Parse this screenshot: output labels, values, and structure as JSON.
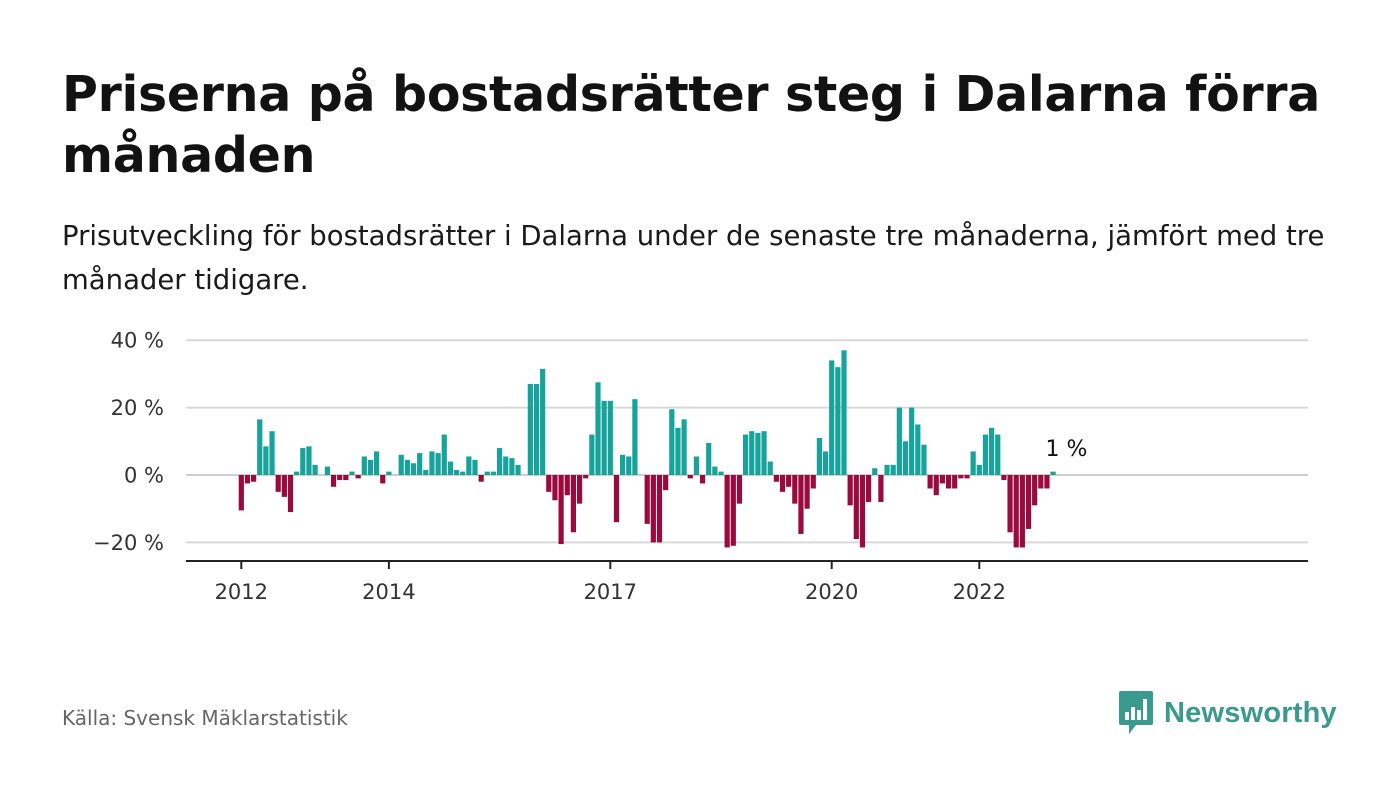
{
  "title": "Priserna på bostadsrätter steg i Dalarna förra månaden",
  "subtitle": "Prisutveckling för bostadsrätter i Dalarna under de senaste tre månaderna, jämfört med tre månader tidigare.",
  "source": "Källa: Svensk Mäklarstatistik",
  "brand": "Newsworthy",
  "colors": {
    "positive": "#16a39c",
    "negative": "#9b0a3c",
    "grid": "#d9d9d9",
    "axis": "#222222",
    "brand": "#3a9a8e"
  },
  "chart_data": {
    "type": "bar",
    "title": "Priserna på bostadsrätter steg i Dalarna förra månaden",
    "subtitle": "Prisutveckling för bostadsrätter i Dalarna under de senaste tre månaderna, jämfört med tre månader tidigare.",
    "xlabel": "",
    "ylabel": "",
    "x_start": "2012-01",
    "x_end": "2023-03",
    "x_unit": "month",
    "ylim": [
      -25,
      40
    ],
    "yticks": [
      40,
      20,
      0,
      -20
    ],
    "ytick_labels": [
      "40 %",
      "20 %",
      "0 %",
      "−20 %"
    ],
    "xticks": [
      "2012-01",
      "2014-01",
      "2017-01",
      "2020-01",
      "2022-01"
    ],
    "xtick_labels": [
      "2012",
      "2014",
      "2017",
      "2020",
      "2022"
    ],
    "grid": true,
    "annotation": {
      "x": "2023-03",
      "label": "1 %"
    },
    "values": [
      -10.5,
      -2.5,
      -2,
      16.5,
      8.5,
      13,
      -5,
      -6.5,
      -11,
      1,
      8,
      8.5,
      3,
      0,
      2.5,
      -3.5,
      -1.5,
      -1.5,
      1,
      -1,
      5.5,
      4.5,
      7,
      -2.5,
      1,
      0,
      6,
      4.5,
      3.5,
      6.5,
      1.5,
      7,
      6.5,
      12,
      4,
      1.5,
      1,
      5.5,
      4.5,
      -2,
      1,
      1,
      8,
      5.5,
      5,
      3,
      0,
      27,
      27,
      31.5,
      -5,
      -7.5,
      -20.5,
      -6,
      -17,
      -8.5,
      -1,
      12,
      27.5,
      22,
      22,
      -14,
      6,
      5.5,
      22.5,
      0,
      -14.5,
      -20,
      -20,
      -4.5,
      19.5,
      14,
      16.5,
      -1,
      5.5,
      -2.5,
      9.5,
      2.5,
      1,
      -21.5,
      -21,
      -8.5,
      12,
      13,
      12.5,
      13,
      4,
      -2,
      -5,
      -3.5,
      -8.5,
      -17.5,
      -10,
      -4,
      11,
      7,
      34,
      32,
      37,
      -9,
      -19,
      -21.5,
      -8,
      2,
      -8,
      3,
      3,
      20,
      10,
      20,
      15,
      9,
      -4,
      -6,
      -2.5,
      -4,
      -4,
      -1,
      -1,
      7,
      3,
      12,
      14,
      12,
      -1.5,
      -17,
      -21.5,
      -21.5,
      -16,
      -9,
      -4,
      -4,
      1
    ]
  }
}
